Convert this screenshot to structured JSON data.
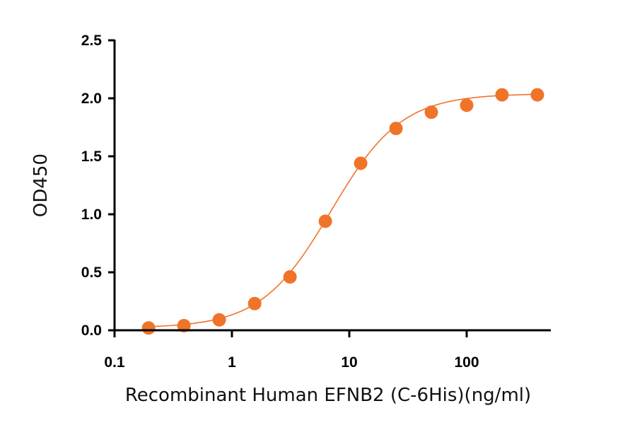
{
  "chart_data": {
    "type": "scatter",
    "xlabel": "Recombinant Human EFNB2 (C-6His)(ng/ml)",
    "ylabel": "OD450",
    "xscale": "log",
    "xlim": [
      0.1,
      500
    ],
    "ylim": [
      0,
      2.5
    ],
    "xticks": [
      0.1,
      1,
      10,
      100
    ],
    "xtick_labels": [
      "0.1",
      "1",
      "10",
      "100"
    ],
    "yticks": [
      0,
      0.5,
      1.0,
      1.5,
      2.0,
      2.5
    ],
    "ytick_labels": [
      "0.0",
      "0.5",
      "1.0",
      "1.5",
      "2.0",
      "2.5"
    ],
    "grid": false,
    "color": "#F07428",
    "fit_curve": "sigmoidal",
    "x": [
      0.195,
      0.39,
      0.78,
      1.5625,
      3.125,
      6.25,
      12.5,
      25,
      50,
      100,
      200,
      400
    ],
    "y": [
      0.02,
      0.04,
      0.09,
      0.23,
      0.46,
      0.94,
      1.44,
      1.74,
      1.88,
      1.94,
      2.03,
      2.03
    ]
  }
}
